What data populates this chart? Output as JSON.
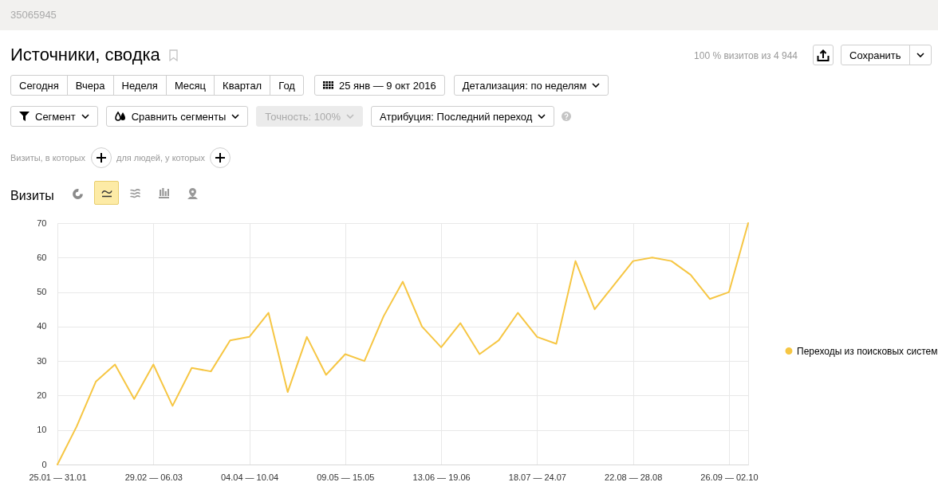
{
  "chart_data": [
    {
      "type": "other",
      "title": "Источники, сводка",
      "annotations": [
        "35065945",
        "100 % визитов из 4 944",
        "Сохранить",
        "Сегодня",
        "Вчера",
        "Неделя",
        "Месяц",
        "Квартал",
        "Год",
        "25 янв — 9 окт 2016",
        "Детализация: по неделям",
        "Сегмент",
        "Сравнить сегменты",
        "Точность: 100%",
        "Атрибуция: Последний переход",
        "Визиты, в которых",
        "для людей, у которых"
      ]
    },
    {
      "type": "line",
      "title": "Визиты",
      "categories": [
        "25.01 — 31.01",
        null,
        null,
        null,
        null,
        "29.02 — 06.03",
        null,
        null,
        null,
        null,
        "04.04 — 10.04",
        null,
        null,
        null,
        null,
        "09.05 — 15.05",
        null,
        null,
        null,
        null,
        "13.06 — 19.06",
        null,
        null,
        null,
        null,
        "18.07 — 24.07",
        null,
        null,
        null,
        null,
        "22.08 — 28.08",
        null,
        null,
        null,
        null,
        "26.09 — 02.10",
        null
      ],
      "series": [
        {
          "name": "Переходы из поисковых систем",
          "color": "#f6c643",
          "values": [
            0,
            11,
            24,
            29,
            19,
            29,
            17,
            28,
            27,
            36,
            37,
            44,
            21,
            37,
            26,
            32,
            30,
            43,
            53,
            40,
            34,
            41,
            32,
            36,
            44,
            37,
            35,
            59,
            45,
            52,
            59,
            60,
            59,
            55,
            48,
            50,
            70
          ]
        }
      ],
      "ylim": [
        0,
        70
      ],
      "yticks": [
        0,
        10,
        20,
        30,
        40,
        50,
        60,
        70
      ],
      "grid": true,
      "legend": "right"
    }
  ]
}
